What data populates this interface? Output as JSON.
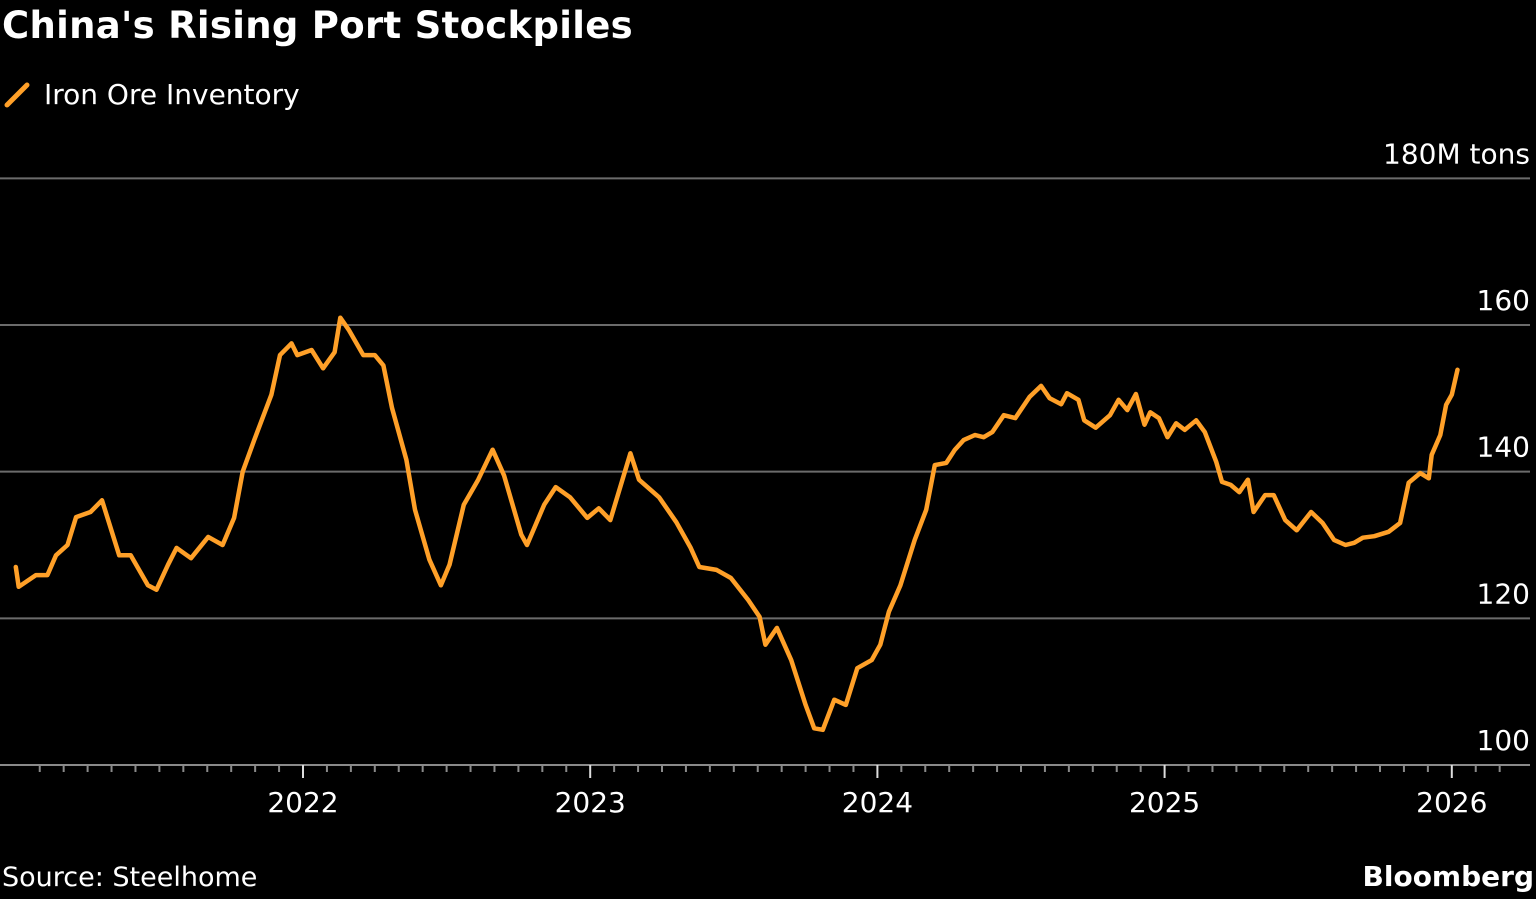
{
  "chart_data": {
    "type": "line",
    "title": "China's Rising Port Stockpiles",
    "legend": [
      {
        "name": "Iron Ore Inventory",
        "color": "#FFA028"
      }
    ],
    "legend_placement": "top-left",
    "ylabel": "M tons",
    "y_ticks": [
      {
        "value": 180,
        "label": "180M tons"
      },
      {
        "value": 160,
        "label": "160"
      },
      {
        "value": 140,
        "label": "140"
      },
      {
        "value": 120,
        "label": "120"
      },
      {
        "value": 100,
        "label": "100"
      }
    ],
    "x_ticks": [
      {
        "value": 2022,
        "label": "2022"
      },
      {
        "value": 2023,
        "label": "2023"
      },
      {
        "value": 2024,
        "label": "2024"
      },
      {
        "value": 2025,
        "label": "2025"
      },
      {
        "value": 2026,
        "label": "2026"
      }
    ],
    "ylim": [
      100,
      180
    ],
    "xlim": [
      2021.0,
      2026.27
    ],
    "grid": true,
    "series": [
      {
        "name": "Iron Ore Inventory",
        "x": [
          2021.0,
          2021.01,
          2021.07,
          2021.11,
          2021.14,
          2021.18,
          2021.21,
          2021.26,
          2021.3,
          2021.36,
          2021.4,
          2021.46,
          2021.49,
          2021.53,
          2021.56,
          2021.61,
          2021.67,
          2021.72,
          2021.76,
          2021.79,
          2021.83,
          2021.89,
          2021.92,
          2021.96,
          2021.98,
          2022.03,
          2022.07,
          2022.11,
          2022.13,
          2022.16,
          2022.21,
          2022.25,
          2022.28,
          2022.31,
          2022.36,
          2022.39,
          2022.44,
          2022.48,
          2022.51,
          2022.56,
          2022.61,
          2022.66,
          2022.7,
          2022.76,
          2022.78,
          2022.84,
          2022.88,
          2022.93,
          2022.99,
          2023.03,
          2023.07,
          2023.14,
          2023.17,
          2023.24,
          2023.3,
          2023.35,
          2023.38,
          2023.44,
          2023.49,
          2023.55,
          2023.59,
          2023.61,
          2023.65,
          2023.7,
          2023.75,
          2023.78,
          2023.81,
          2023.85,
          2023.89,
          2023.93,
          2023.98,
          2024.01,
          2024.04,
          2024.08,
          2024.13,
          2024.17,
          2024.2,
          2024.24,
          2024.27,
          2024.3,
          2024.34,
          2024.37,
          2024.4,
          2024.44,
          2024.48,
          2024.53,
          2024.57,
          2024.6,
          2024.64,
          2024.66,
          2024.7,
          2024.72,
          2024.76,
          2024.81,
          2024.84,
          2024.87,
          2024.9,
          2024.93,
          2024.95,
          2024.98,
          2025.01,
          2025.04,
          2025.07,
          2025.11,
          2025.14,
          2025.18,
          2025.2,
          2025.23,
          2025.26,
          2025.29,
          2025.31,
          2025.35,
          2025.38,
          2025.42,
          2025.46,
          2025.51,
          2025.55,
          2025.59,
          2025.63,
          2025.66,
          2025.69,
          2025.73,
          2025.78,
          2025.82,
          2025.85,
          2025.89,
          2025.92,
          2025.93,
          2025.96,
          2025.98,
          2026.0,
          2026.02
        ],
        "values": [
          127.0,
          124.3,
          125.9,
          125.9,
          128.6,
          130.0,
          133.8,
          134.5,
          136.1,
          128.6,
          128.6,
          124.5,
          123.9,
          127.3,
          129.6,
          128.2,
          131.1,
          130.0,
          133.7,
          140.0,
          144.3,
          150.5,
          155.9,
          157.5,
          155.9,
          156.6,
          154.1,
          156.3,
          161.0,
          159.3,
          155.9,
          155.9,
          154.5,
          148.7,
          141.6,
          134.8,
          128.0,
          124.5,
          127.3,
          135.5,
          138.9,
          143.0,
          139.5,
          131.4,
          130.0,
          135.5,
          137.9,
          136.5,
          133.7,
          135.0,
          133.4,
          142.5,
          138.9,
          136.5,
          133.1,
          129.6,
          127.0,
          126.6,
          125.5,
          122.5,
          120.2,
          116.4,
          118.7,
          114.3,
          108.2,
          105.0,
          104.8,
          108.9,
          108.2,
          113.2,
          114.3,
          116.4,
          120.9,
          124.5,
          130.7,
          134.8,
          140.9,
          141.2,
          143.0,
          144.3,
          145.0,
          144.7,
          145.4,
          147.7,
          147.3,
          150.2,
          151.7,
          150.0,
          149.2,
          150.7,
          149.8,
          147.0,
          146.0,
          147.7,
          149.8,
          148.4,
          150.6,
          146.4,
          148.1,
          147.3,
          144.7,
          146.6,
          145.7,
          147.0,
          145.4,
          141.3,
          138.6,
          138.2,
          137.2,
          138.9,
          134.5,
          136.8,
          136.8,
          133.4,
          132.0,
          134.5,
          133.0,
          130.7,
          130.0,
          130.3,
          131.0,
          131.2,
          131.8,
          133.0,
          138.5,
          139.8,
          139.1,
          142.3,
          145.0,
          149.1,
          150.5,
          153.9
        ]
      }
    ]
  },
  "footer": {
    "source": "Source: Steelhome",
    "brand": "Bloomberg"
  }
}
